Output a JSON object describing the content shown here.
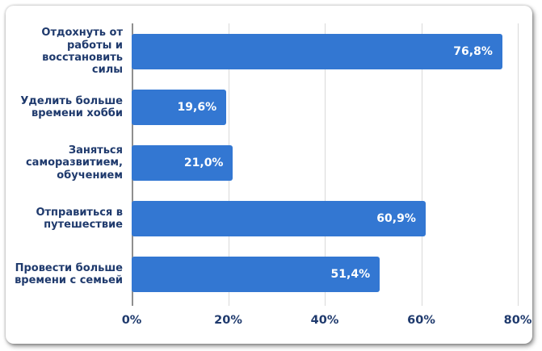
{
  "chart_data": {
    "type": "bar",
    "orientation": "horizontal",
    "title": "",
    "categories": [
      "Отдохнуть от работы и восстановить силы",
      "Уделить больше времени хобби",
      "Заняться саморазвитием, обучением",
      "Отправиться в путешествие",
      "Провести больше времени с семьей"
    ],
    "values": [
      76.8,
      19.6,
      21.0,
      60.9,
      51.4
    ],
    "value_labels": [
      "76,8%",
      "19,6%",
      "21,0%",
      "60,9%",
      "51,4%"
    ],
    "x_tick_labels": [
      "0%",
      "20%",
      "40%",
      "60%",
      "80%"
    ],
    "x_tick_values": [
      0,
      20,
      40,
      60,
      80
    ],
    "xlim": [
      0,
      80
    ],
    "xlabel": "",
    "ylabel": "",
    "grid": "vertical",
    "legend": "none",
    "colors": {
      "bar": "#3377d2",
      "category_label": "#1f3a6d",
      "value_label": "#ffffff",
      "tick_label": "#1f3a6d",
      "gridline": "#d9d9d9",
      "axis_line": "#8f8f8f",
      "card_background": "#ffffff"
    }
  }
}
